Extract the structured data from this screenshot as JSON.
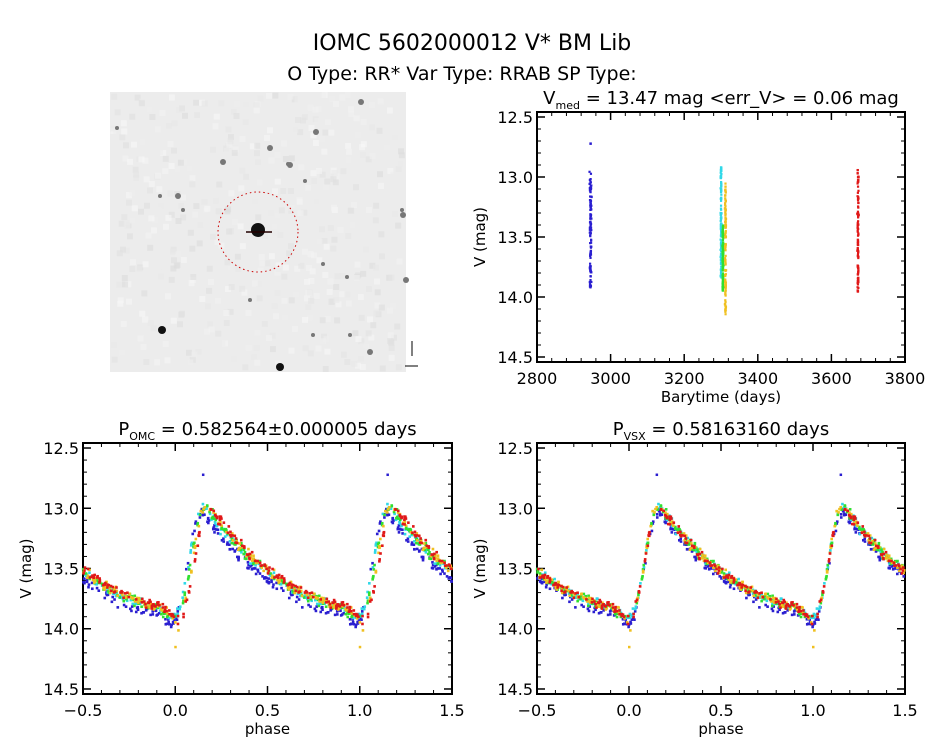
{
  "header": {
    "title": "IOMC 5602000012   V* BM Lib",
    "subtitle": "O Type: RR*  Var Type: RRAB  SP Type:"
  },
  "colors": {
    "blue": "#2a1ed0",
    "cyan": "#30d8e8",
    "green": "#30e030",
    "yellow": "#f0c020",
    "red": "#e01818"
  },
  "chart_data": [
    {
      "type": "image",
      "description_icon": "sky-image-icon",
      "target_marker": "red dotted circle"
    },
    {
      "type": "scatter",
      "title_main": "V",
      "title_sub": "med",
      "title_rest": " = 13.47 mag <err_V> = 0.06 mag",
      "xlabel": "Barytime (days)",
      "ylabel": "V (mag)",
      "xlim": [
        2800,
        3800
      ],
      "ylim": [
        14.5,
        12.5
      ],
      "xticks": [
        "2800",
        "3000",
        "3200",
        "3400",
        "3600",
        "3800"
      ],
      "yticks": [
        "12.5",
        "13.0",
        "13.5",
        "14.0",
        "14.5"
      ],
      "series": [
        {
          "color": "blue",
          "time": 2945,
          "spread": 8,
          "range": [
            12.95,
            13.93
          ],
          "outlier": 12.72
        },
        {
          "color": "cyan",
          "time": 3300,
          "spread": 4,
          "range": [
            12.9,
            13.85
          ]
        },
        {
          "color": "green",
          "time": 3305,
          "spread": 4,
          "range": [
            13.4,
            13.95
          ]
        },
        {
          "color": "yellow",
          "time": 3312,
          "spread": 4,
          "range": [
            13.05,
            14.15
          ]
        },
        {
          "color": "red",
          "time": 3672,
          "spread": 5,
          "range": [
            12.93,
            13.97
          ]
        }
      ]
    },
    {
      "type": "scatter",
      "title_main": "P",
      "title_sub": "OMC",
      "title_rest": " = 0.582564±0.000005 days",
      "xlabel": "phase",
      "ylabel": "V (mag)",
      "xlim": [
        -0.5,
        1.5
      ],
      "ylim": [
        14.5,
        12.5
      ],
      "xticks": [
        "-0.5",
        "0.0",
        "0.5",
        "1.0",
        "1.5"
      ],
      "yticks": [
        "12.5",
        "13.0",
        "13.5",
        "14.0",
        "14.5"
      ],
      "light_curve": {
        "phase": [
          0.0,
          0.03,
          0.06,
          0.1,
          0.13,
          0.16,
          0.2,
          0.3,
          0.4,
          0.5,
          0.6,
          0.7,
          0.8,
          0.9,
          0.95,
          1.0
        ],
        "V": [
          13.92,
          13.85,
          13.65,
          13.3,
          13.05,
          12.97,
          13.05,
          13.25,
          13.4,
          13.52,
          13.63,
          13.72,
          13.78,
          13.82,
          13.87,
          13.92
        ]
      }
    },
    {
      "type": "scatter",
      "title_main": "P",
      "title_sub": "VSX",
      "title_rest": " = 0.58163160 days",
      "xlabel": "phase",
      "ylabel": "V (mag)",
      "xlim": [
        -0.5,
        1.5
      ],
      "ylim": [
        14.5,
        12.5
      ],
      "xticks": [
        "-0.5",
        "0.0",
        "0.5",
        "1.0",
        "1.5"
      ],
      "yticks": [
        "12.5",
        "13.0",
        "13.5",
        "14.0",
        "14.5"
      ]
    }
  ]
}
